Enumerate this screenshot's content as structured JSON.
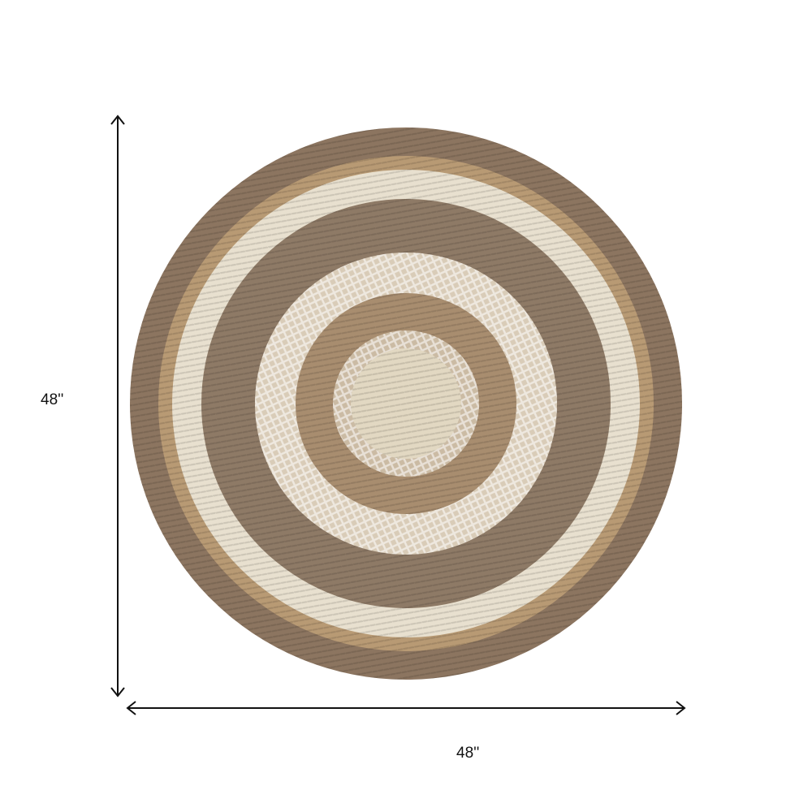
{
  "product": {
    "rings": [
      {
        "name": "outer-band",
        "color": "#8c7560"
      },
      {
        "name": "tan-band",
        "color": "#b89a74"
      },
      {
        "name": "cream-band",
        "color": "#e8e0cf"
      },
      {
        "name": "taupe-band",
        "color": "#8e7a66"
      },
      {
        "name": "patterned-white-band",
        "color": "#d9ccb8"
      },
      {
        "name": "tan-inner-band",
        "color": "#a88d6f"
      },
      {
        "name": "patterned-inner-band",
        "color": "#cbbba4"
      },
      {
        "name": "center",
        "color": "#e2d8c2"
      }
    ]
  },
  "dimensions": {
    "height": "48''",
    "width": "48''"
  }
}
